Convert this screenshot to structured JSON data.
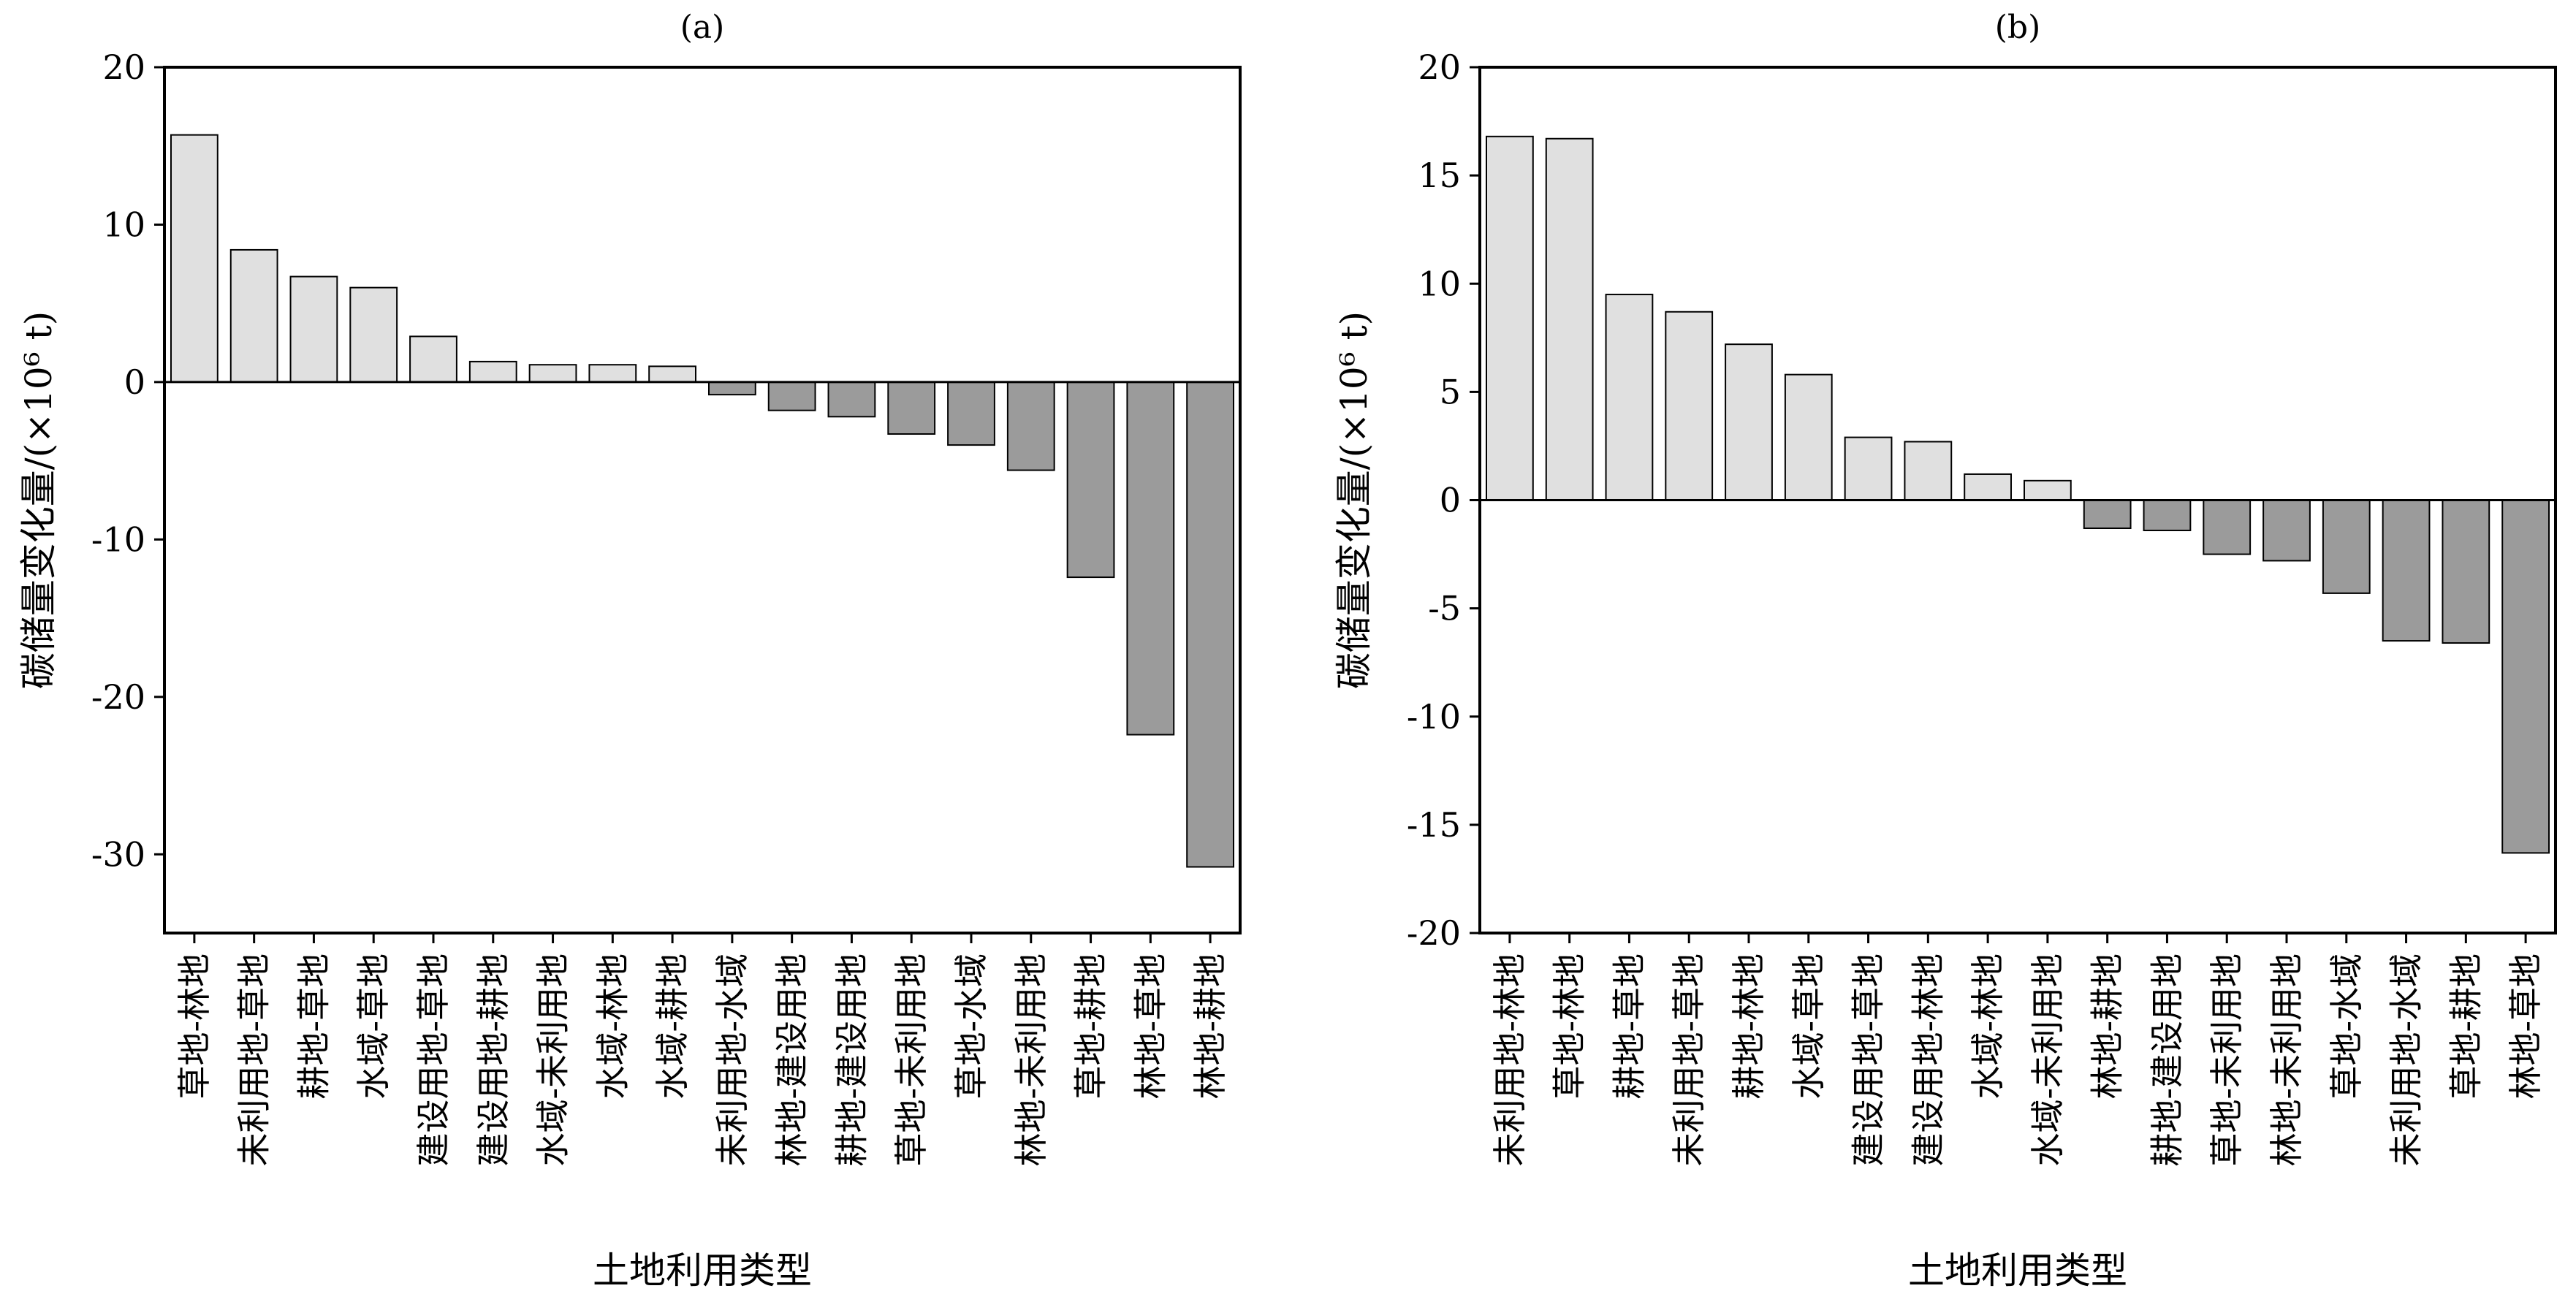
{
  "colors": {
    "positive": "#e0e0e0",
    "negative": "#9b9b9b",
    "stroke": "#000000"
  },
  "chart_data": [
    {
      "type": "bar",
      "title": "(a)",
      "xlabel": "土地利用类型",
      "ylabel": "碳储量变化量/(×10⁶ t)",
      "ylim": [
        -35,
        20
      ],
      "yticks": [
        20,
        10,
        0,
        -10,
        -20,
        -30
      ],
      "ytick_labels": [
        "20",
        "10",
        "0",
        "-10",
        "-20",
        "-30"
      ],
      "grid": false,
      "categories": [
        "草地-林地",
        "未利用地-草地",
        "耕地-草地",
        "水域-草地",
        "建设用地-草地",
        "建设用地-耕地",
        "水域-未利用地",
        "水域-林地",
        "水域-耕地",
        "未利用地-水域",
        "林地-建设用地",
        "耕地-建设用地",
        "草地-未利用地",
        "草地-水域",
        "林地-未利用地",
        "草地-耕地",
        "林地-草地",
        "林地-耕地"
      ],
      "values": [
        15.7,
        8.4,
        6.7,
        6.0,
        2.9,
        1.3,
        1.1,
        1.1,
        1.0,
        -0.8,
        -1.8,
        -2.2,
        -3.3,
        -4.0,
        -5.6,
        -12.4,
        -22.4,
        -30.8
      ]
    },
    {
      "type": "bar",
      "title": "(b)",
      "xlabel": "土地利用类型",
      "ylabel": "碳储量变化量/(×10⁶ t)",
      "ylim": [
        -20,
        20
      ],
      "yticks": [
        20,
        15,
        10,
        5,
        0,
        -5,
        -10,
        -15,
        -20
      ],
      "ytick_labels": [
        "20",
        "15",
        "10",
        "5",
        "0",
        "-5",
        "-10",
        "-15",
        "-20"
      ],
      "grid": false,
      "categories": [
        "未利用地-林地",
        "草地-林地",
        "耕地-草地",
        "未利用地-草地",
        "耕地-林地",
        "水域-草地",
        "建设用地-草地",
        "建设用地-林地",
        "水域-林地",
        "水域-未利用地",
        "林地-耕地",
        "耕地-建设用地",
        "草地-未利用地",
        "林地-未利用地",
        "草地-水域",
        "未利用地-水域",
        "草地-耕地",
        "林地-草地"
      ],
      "values": [
        16.8,
        16.7,
        9.5,
        8.7,
        7.2,
        5.8,
        2.9,
        2.7,
        1.2,
        0.9,
        -1.3,
        -1.4,
        -2.5,
        -2.8,
        -4.3,
        -6.5,
        -6.6,
        -16.3
      ]
    }
  ]
}
